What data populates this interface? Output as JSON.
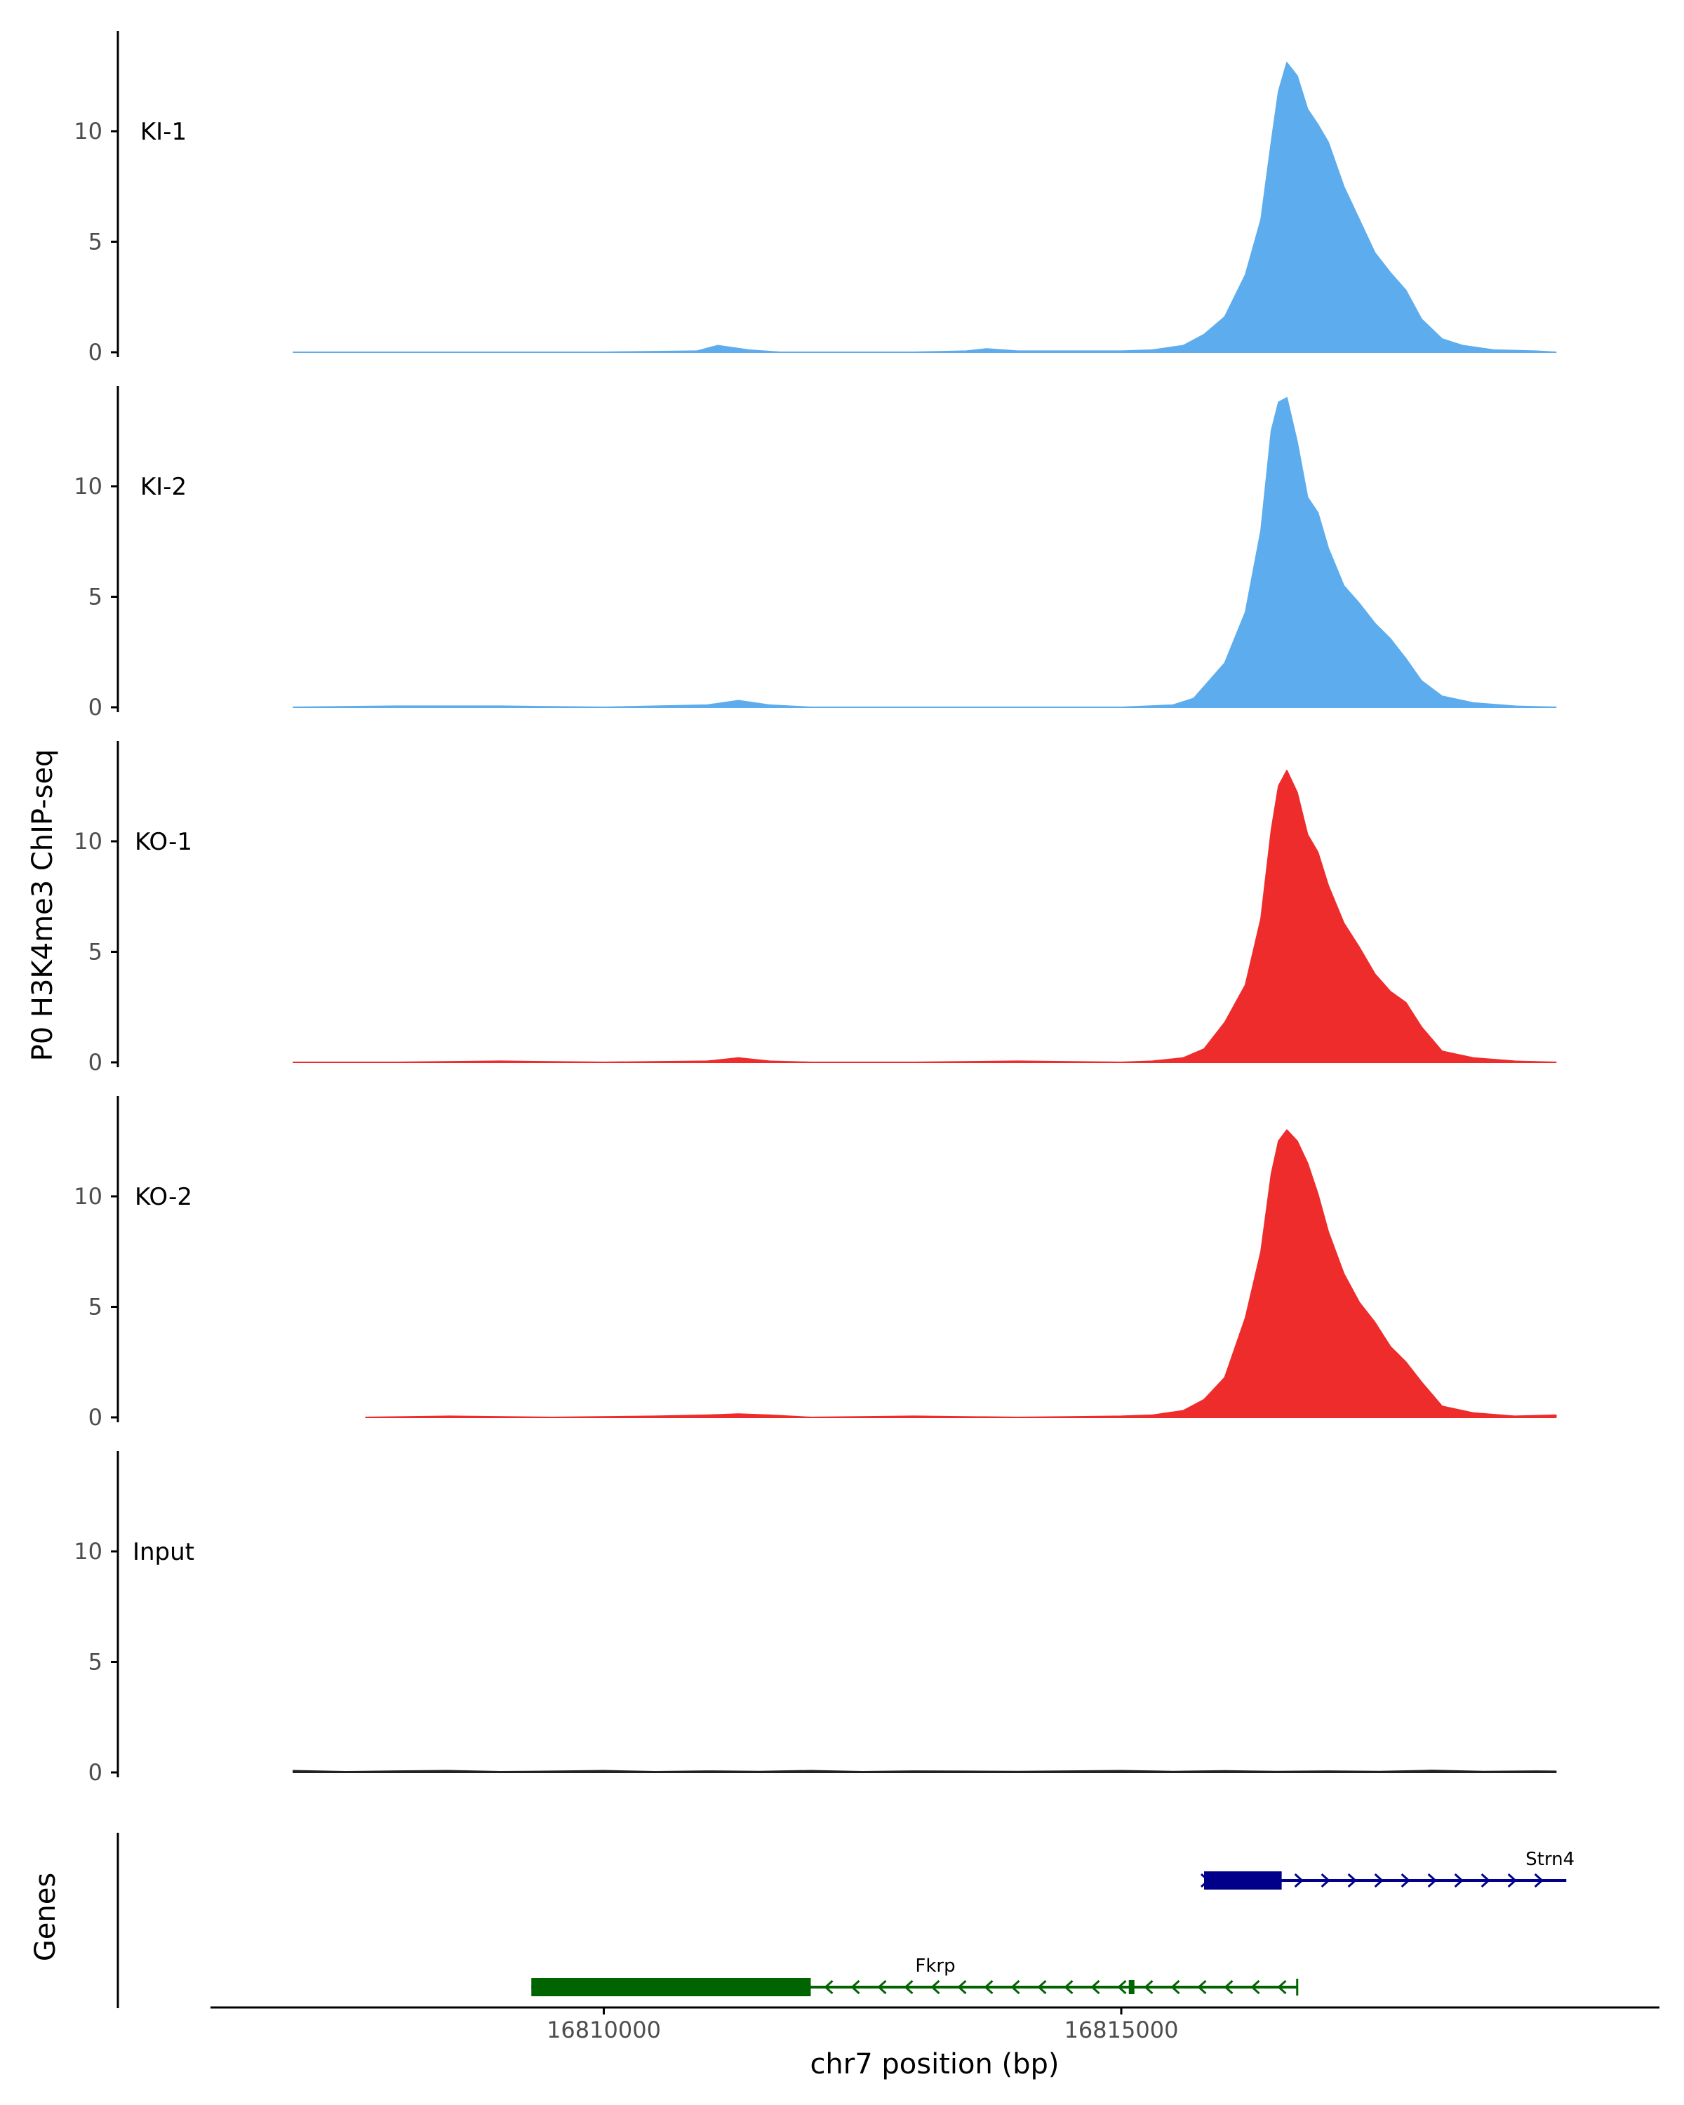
{
  "chart_data": {
    "type": "area",
    "ylabel": "P0 H3K4me3 ChIP-seq",
    "xlabel": "chr7 position (bp)",
    "ylim": [
      0,
      14.5
    ],
    "yticks": [
      0,
      5,
      10
    ],
    "xlim": [
      16806200,
      16820200
    ],
    "xticks": [
      16810000,
      16815000
    ],
    "xtick_labels": [
      "16810000",
      "16815000"
    ],
    "colors": {
      "KI": "#5DADEE",
      "KO": "#EE2C2C",
      "Input": "#222222",
      "Strn4": "#00008B",
      "Fkrp": "#006400"
    },
    "tracks": [
      {
        "label": "KI-1",
        "color": "#5DADEE",
        "x": [
          16807000,
          16809000,
          16810000,
          16810900,
          16811100,
          16811400,
          16811700,
          16812000,
          16813000,
          16813500,
          16813700,
          16814000,
          16814500,
          16815000,
          16815300,
          16815600,
          16815800,
          16816000,
          16816200,
          16816350,
          16816450,
          16816520,
          16816600,
          16816700,
          16816800,
          16816900,
          16817000,
          16817150,
          16817300,
          16817450,
          16817600,
          16817750,
          16817900,
          16818100,
          16818300,
          16818600,
          16819000,
          16819200
        ],
        "values": [
          0,
          0,
          0,
          0.05,
          0.3,
          0.1,
          0,
          0,
          0,
          0.05,
          0.15,
          0.05,
          0.05,
          0.05,
          0.1,
          0.3,
          0.8,
          1.6,
          3.5,
          6,
          9.5,
          11.8,
          13.1,
          12.5,
          11,
          10.3,
          9.5,
          7.5,
          6,
          4.5,
          3.6,
          2.8,
          1.5,
          0.6,
          0.3,
          0.1,
          0.05,
          0
        ]
      },
      {
        "label": "KI-2",
        "color": "#5DADEE",
        "x": [
          16807000,
          16808000,
          16809000,
          16810000,
          16811000,
          16811300,
          16811600,
          16812000,
          16813000,
          16814000,
          16815000,
          16815500,
          16815700,
          16816000,
          16816200,
          16816350,
          16816450,
          16816520,
          16816600,
          16816700,
          16816800,
          16816900,
          16817000,
          16817150,
          16817300,
          16817450,
          16817600,
          16817750,
          16817900,
          16818100,
          16818400,
          16818800,
          16819200
        ],
        "values": [
          0,
          0.05,
          0.05,
          0,
          0.1,
          0.3,
          0.1,
          0,
          0,
          0,
          0,
          0.1,
          0.4,
          2,
          4.3,
          8,
          12.5,
          13.8,
          14,
          12,
          9.5,
          8.8,
          7.2,
          5.5,
          4.7,
          3.8,
          3.1,
          2.2,
          1.2,
          0.5,
          0.2,
          0.05,
          0
        ]
      },
      {
        "label": "KO-1",
        "color": "#EE2C2C",
        "x": [
          16807000,
          16808000,
          16809000,
          16810000,
          16811000,
          16811300,
          16811600,
          16812000,
          16813000,
          16814000,
          16815000,
          16815300,
          16815600,
          16815800,
          16816000,
          16816200,
          16816350,
          16816450,
          16816520,
          16816600,
          16816700,
          16816800,
          16816900,
          16817000,
          16817150,
          16817300,
          16817450,
          16817600,
          16817750,
          16817900,
          16818100,
          16818400,
          16818800,
          16819200
        ],
        "values": [
          0,
          0,
          0.05,
          0,
          0.05,
          0.2,
          0.05,
          0,
          0,
          0.05,
          0,
          0.05,
          0.2,
          0.6,
          1.8,
          3.5,
          6.5,
          10.5,
          12.5,
          13.2,
          12.2,
          10.3,
          9.5,
          8,
          6.3,
          5.2,
          4,
          3.2,
          2.7,
          1.6,
          0.5,
          0.2,
          0.05,
          0
        ]
      },
      {
        "label": "KO-2",
        "color": "#EE2C2C",
        "x": [
          16807700,
          16808500,
          16809500,
          16810500,
          16811000,
          16811300,
          16811600,
          16812000,
          16813000,
          16814000,
          16815000,
          16815300,
          16815600,
          16815800,
          16816000,
          16816200,
          16816350,
          16816450,
          16816520,
          16816600,
          16816700,
          16816800,
          16816900,
          16817000,
          16817150,
          16817300,
          16817450,
          16817600,
          16817750,
          16817900,
          16818100,
          16818400,
          16818800,
          16819200
        ],
        "values": [
          0,
          0.05,
          0,
          0.05,
          0.1,
          0.15,
          0.1,
          0,
          0.05,
          0,
          0.05,
          0.1,
          0.3,
          0.8,
          1.8,
          4.5,
          7.5,
          11,
          12.5,
          13,
          12.5,
          11.5,
          10.1,
          8.4,
          6.5,
          5.2,
          4.3,
          3.2,
          2.5,
          1.6,
          0.5,
          0.2,
          0.05,
          0.1
        ]
      },
      {
        "label": "Input",
        "color": "#222222",
        "x": [
          16807000,
          16807500,
          16808000,
          16808500,
          16809000,
          16809500,
          16810000,
          16810500,
          16811000,
          16811500,
          16812000,
          16812500,
          16813000,
          16813500,
          16814000,
          16814500,
          16815000,
          16815500,
          16816000,
          16816500,
          16817000,
          16817500,
          16818000,
          16818500,
          16819000,
          16819200
        ],
        "values": [
          0.08,
          0.03,
          0.06,
          0.08,
          0.03,
          0.05,
          0.08,
          0.03,
          0.06,
          0.04,
          0.08,
          0.03,
          0.06,
          0.05,
          0.04,
          0.06,
          0.08,
          0.04,
          0.07,
          0.04,
          0.06,
          0.04,
          0.09,
          0.04,
          0.06,
          0.05
        ]
      }
    ],
    "genes_track_label": "Genes",
    "genes": [
      {
        "name": "Strn4",
        "strand": "+",
        "color": "#00008B",
        "start": 16815800,
        "end": 16819300,
        "thick_start": 16815800,
        "thick_end": 16816550
      },
      {
        "name": "Fkrp",
        "strand": "-",
        "color": "#006400",
        "start": 16809300,
        "end": 16816700,
        "thick_start": 16809300,
        "thick_end": 16812000
      }
    ]
  }
}
